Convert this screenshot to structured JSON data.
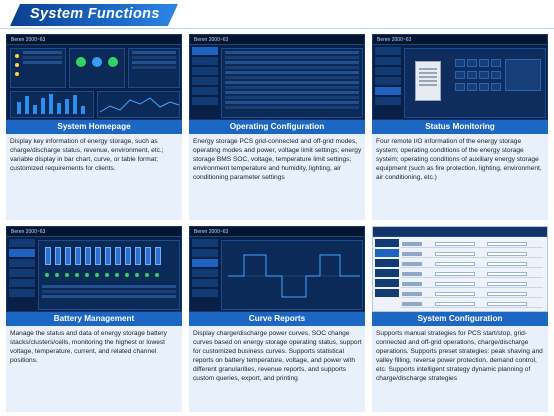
{
  "banner": {
    "title": "System Functions"
  },
  "cards": [
    {
      "caption": "System Homepage",
      "header": "Beren 2000~63",
      "description": "Display key information of energy storage, such as charge/discharge status, revenue, environment, etc.; variable display in bar chart, curve, or table format; customized requirements for clients."
    },
    {
      "caption": "Operating Configuration",
      "header": "Beren 2000~63",
      "description": "Energy storage PCS grid-connected and off-grid modes, operating modes and power, voltage limit settings; energy storage BMS SOC, voltage, temperature limit settings; environment temperature and humidity, lighting, air conditioning parameter settings"
    },
    {
      "caption": "Status Monitoring",
      "header": "Beren 2000~63",
      "description": "Four remote I/O information of the energy storage system; operating conditions of the energy storage system; operating conditions of auxiliary energy storage equipment (such as fire protection, lighting, environment, air conditioning, etc.)"
    },
    {
      "caption": "Battery Management",
      "header": "Beren 2000~63",
      "description": "Manage the status and data of energy storage battery stacks/clusters/cells, monitoring the highest or lowest voltage, temperature, current, and related channel positions."
    },
    {
      "caption": "Curve Reports",
      "header": "Beren 2000~63",
      "description": "Display charge/discharge power curves, SOC change curves based on energy storage operating status, support for customized business curves. Supports statistical reports on battery temperature, voltage, and power with different granularities, revenue reports, and supports custom queries, export, and printing"
    },
    {
      "caption": "System Configuration",
      "header": "",
      "description": "Supports manual strategies for PCS start/stop, grid-connected and off-grid operations, charge/discharge operations. Supports preset strategies: peak shaving and valley filling, reverse power protection, demand control, etc. Supports intelligent strategy dynamic planning of charge/discharge strategies"
    }
  ],
  "colors": {
    "accent": "#1d67c4",
    "banner_dark": "#0b3f8f",
    "desc_bg": "#e8f1fb",
    "screen_bg": "#0a1f45"
  }
}
